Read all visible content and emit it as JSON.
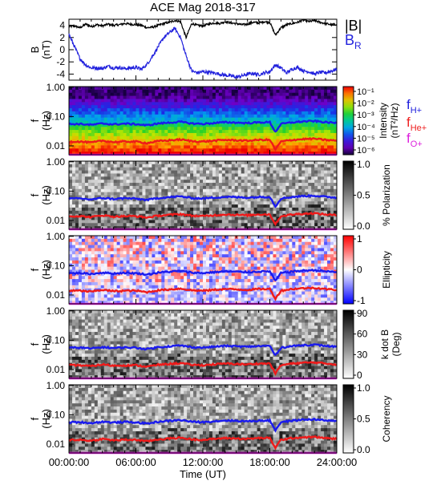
{
  "chart_data": [
    {
      "type": "line",
      "title": "ACE Mag 2018-317",
      "ylabel": "B (nT)",
      "ylim": [
        -5,
        5
      ],
      "yticks": [
        "4",
        "2",
        "0",
        "-2",
        "-4"
      ],
      "legend": [
        "|B|",
        "B_R"
      ],
      "legend_text": {
        "main1": "|B|",
        "main2": "B",
        "sub2": "R"
      },
      "colors": {
        "|B|": "#000000",
        "B_R": "#2222dd"
      },
      "series": [
        {
          "name": "|B|",
          "x": [
            0,
            0.5,
            1,
            1.5,
            2,
            2.5,
            3,
            3.5,
            4,
            4.5,
            5,
            5.5,
            6,
            6.5,
            7,
            7.5,
            8,
            8.5,
            9,
            9.5,
            10,
            10.5,
            11,
            11.5,
            12,
            12.5,
            13,
            13.5,
            14,
            14.5,
            15,
            15.5,
            16,
            16.5,
            17,
            17.5,
            18,
            18.5,
            19,
            19.5,
            20,
            20.5,
            21,
            21.5,
            22,
            22.5,
            23,
            23.5,
            24
          ],
          "values": [
            3.8,
            3.9,
            3.6,
            4.2,
            3.8,
            4.1,
            3.9,
            4.2,
            4.0,
            4.1,
            4.3,
            4.2,
            4.1,
            4.0,
            3.6,
            3.7,
            4.0,
            4.3,
            4.5,
            4.8,
            4.6,
            2.0,
            4.3,
            4.0,
            3.9,
            4.2,
            4.4,
            4.3,
            4.6,
            4.4,
            4.3,
            4.1,
            4.2,
            4.5,
            4.4,
            4.6,
            4.5,
            2.4,
            3.6,
            4.1,
            4.3,
            4.5,
            4.9,
            4.6,
            4.8,
            4.5,
            4.3,
            4.1,
            4.2
          ]
        },
        {
          "name": "B_R",
          "x": [
            0,
            0.5,
            1,
            1.5,
            2,
            2.5,
            3,
            3.5,
            4,
            4.5,
            5,
            5.5,
            6,
            6.5,
            7,
            7.5,
            8,
            8.5,
            9,
            9.5,
            10,
            10.5,
            11,
            11.5,
            12,
            12.5,
            13,
            13.5,
            14,
            14.5,
            15,
            15.5,
            16,
            16.5,
            17,
            17.5,
            18,
            18.5,
            19,
            19.5,
            20,
            20.5,
            21,
            21.5,
            22,
            22.5,
            23,
            23.5,
            24
          ],
          "values": [
            2.5,
            0.5,
            -1.5,
            -2.5,
            -3.0,
            -3.0,
            -3.1,
            -2.7,
            -3.0,
            -2.9,
            -3.1,
            -3.0,
            -2.9,
            -3.2,
            -2.4,
            -1.0,
            0.5,
            2.0,
            2.8,
            3.5,
            2.0,
            -1.0,
            -3.5,
            -3.8,
            -3.6,
            -3.7,
            -3.8,
            -4.0,
            -4.2,
            -4.3,
            -4.5,
            -4.3,
            -4.0,
            -3.9,
            -4.1,
            -3.8,
            -3.6,
            -2.5,
            -3.0,
            -3.8,
            -3.2,
            -2.9,
            -3.5,
            -3.6,
            -4.0,
            -3.7,
            -3.8,
            -3.5,
            -3.2
          ]
        }
      ]
    },
    {
      "type": "heatmap",
      "ylabel": "f (Hz)",
      "yscale": "log",
      "ylim": [
        0.005,
        1.0
      ],
      "yticks": [
        "1.00",
        "0.10",
        "0.01"
      ],
      "colorbar_label": "Intensity (nT²/Hz)",
      "colorbar_ticks": [
        "10⁻¹",
        "10⁻²",
        "10⁻³",
        "10⁻⁴",
        "10⁻⁵",
        "10⁻⁶"
      ],
      "colorbar_scale": "rainbow",
      "legend": [
        "f_H+",
        "f_He+",
        "f_O+"
      ],
      "legend_text": [
        {
          "main": "f",
          "sub": "H+",
          "color": "#2222dd"
        },
        {
          "main": "f",
          "sub": "He+",
          "color": "#ee2222"
        },
        {
          "main": "f",
          "sub": "O+",
          "color": "#dd22dd"
        }
      ]
    },
    {
      "type": "heatmap",
      "ylabel": "f (Hz)",
      "yscale": "log",
      "ylim": [
        0.005,
        1.0
      ],
      "yticks": [
        "1.00",
        "0.10",
        "0.01"
      ],
      "colorbar_label": "% Polarization",
      "colorbar_ticks": [
        "1.0",
        "0.5",
        "0.0"
      ],
      "colorbar_scale": "gray"
    },
    {
      "type": "heatmap",
      "ylabel": "f (Hz)",
      "yscale": "log",
      "ylim": [
        0.005,
        1.0
      ],
      "yticks": [
        "1.00",
        "0.10",
        "0.01"
      ],
      "colorbar_label": "Ellipticity",
      "colorbar_ticks": [
        "1",
        "0",
        "-1"
      ],
      "colorbar_scale": "bluewhitered"
    },
    {
      "type": "heatmap",
      "ylabel": "f (Hz)",
      "yscale": "log",
      "ylim": [
        0.005,
        1.0
      ],
      "yticks": [
        "1.00",
        "0.10",
        "0.01"
      ],
      "colorbar_label": "k dot B (Deg)",
      "colorbar_ticks": [
        "90",
        "60",
        "30",
        "0"
      ],
      "colorbar_scale": "gray"
    },
    {
      "type": "heatmap",
      "ylabel": "f (Hz)",
      "yscale": "log",
      "ylim": [
        0.005,
        1.0
      ],
      "yticks": [
        "1.00",
        "0.10",
        "0.01"
      ],
      "colorbar_label": "Coherency",
      "colorbar_ticks": [
        "1.0",
        "0.5",
        "0.0"
      ],
      "colorbar_scale": "gray",
      "xlabel": "Time (UT)",
      "xlim": [
        0,
        24
      ],
      "xticks": [
        "00:00:00",
        "06:00:00",
        "12:00:00",
        "18:00:00",
        "24:00:00"
      ]
    }
  ],
  "gyrofrequency_curves": {
    "x": [
      0,
      1,
      2,
      3,
      4,
      5,
      6,
      7,
      8,
      9,
      10,
      11,
      12,
      13,
      14,
      15,
      16,
      17,
      18,
      18.5,
      19,
      20,
      21,
      22,
      23,
      24
    ],
    "f_H+": [
      0.055,
      0.056,
      0.052,
      0.058,
      0.054,
      0.057,
      0.055,
      0.05,
      0.058,
      0.062,
      0.066,
      0.058,
      0.056,
      0.06,
      0.064,
      0.062,
      0.06,
      0.063,
      0.064,
      0.03,
      0.056,
      0.063,
      0.068,
      0.07,
      0.064,
      0.06
    ],
    "f_He+": [
      0.014,
      0.014,
      0.013,
      0.015,
      0.0135,
      0.014,
      0.014,
      0.0125,
      0.0145,
      0.0155,
      0.0165,
      0.0145,
      0.014,
      0.015,
      0.016,
      0.0155,
      0.015,
      0.016,
      0.016,
      0.0075,
      0.014,
      0.016,
      0.017,
      0.0175,
      0.016,
      0.015
    ],
    "f_O+": [
      0.0035,
      0.0035,
      0.0033,
      0.0037,
      0.0034,
      0.0035,
      0.0035,
      0.0031,
      0.0036,
      0.0039,
      0.0041,
      0.0036,
      0.0035,
      0.0038,
      0.004,
      0.0039,
      0.0038,
      0.004,
      0.004,
      0.0019,
      0.0035,
      0.004,
      0.0043,
      0.0044,
      0.004,
      0.0038
    ]
  }
}
